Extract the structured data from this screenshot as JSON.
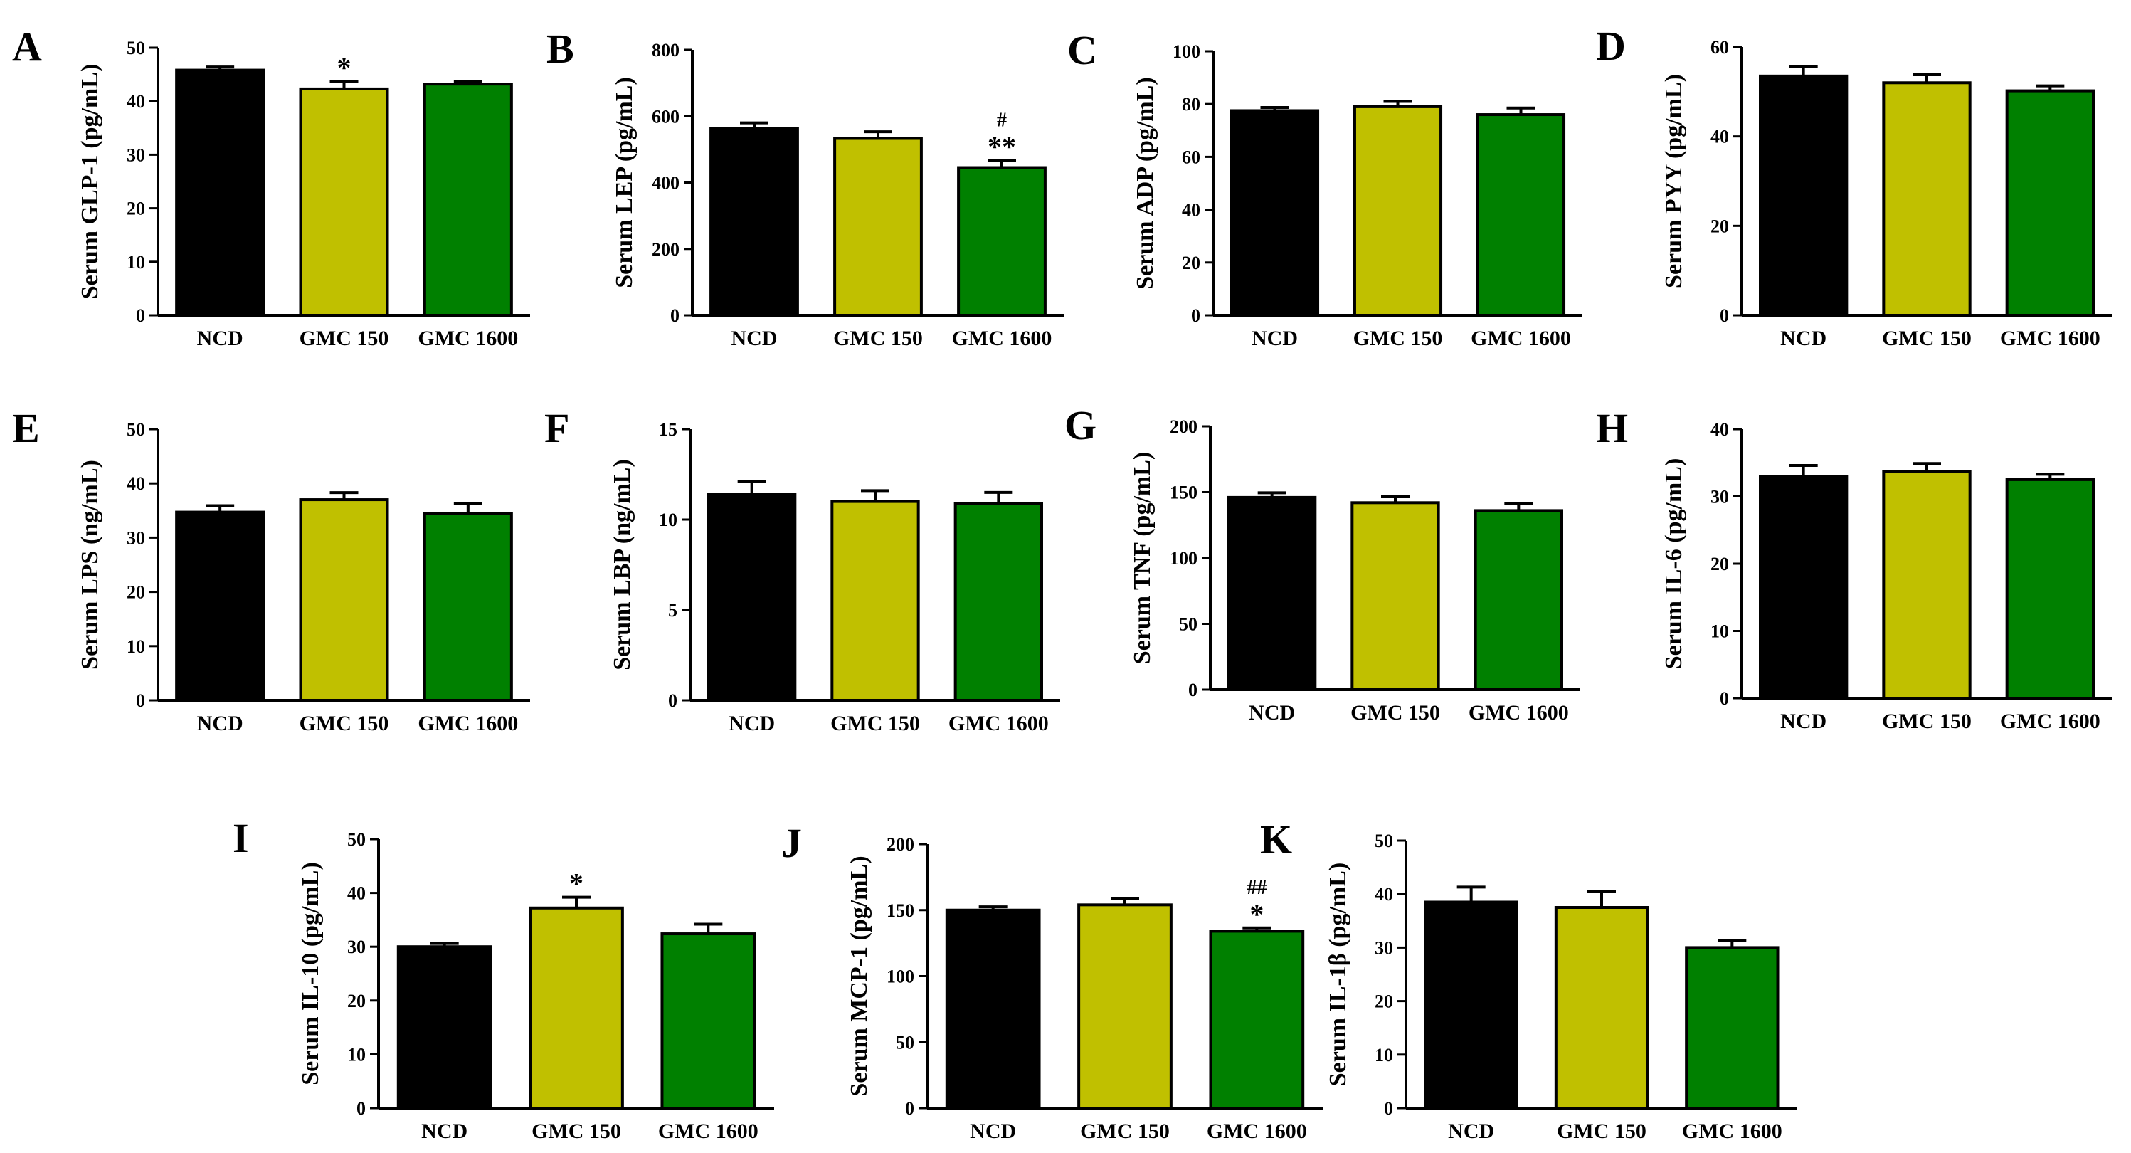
{
  "colors": {
    "NCD": "#000000",
    "GMC 150": "#c0c000",
    "GMC 1600": "#008000",
    "axis": "#000000"
  },
  "chart_data": [
    {
      "panel": "A",
      "type": "bar",
      "ylabel": "Serum GLP-1 (pg/mL)",
      "ylim": [
        0,
        50
      ],
      "yticks": [
        0,
        10,
        20,
        30,
        40,
        50
      ],
      "categories": [
        "NCD",
        "GMC 150",
        "GMC 1600"
      ],
      "values": [
        45.8,
        42.3,
        43.2
      ],
      "errors": [
        0.6,
        1.4,
        0.5
      ],
      "annotations": [
        "",
        "*",
        ""
      ]
    },
    {
      "panel": "B",
      "type": "bar",
      "ylabel": "Serum LEP (pg/mL)",
      "ylim": [
        0,
        800
      ],
      "yticks": [
        0,
        200,
        400,
        600,
        800
      ],
      "categories": [
        "NCD",
        "GMC 150",
        "GMC 1600"
      ],
      "values": [
        562,
        533,
        445
      ],
      "errors": [
        18,
        20,
        22
      ],
      "annotations": [
        "",
        "",
        "#\n**"
      ]
    },
    {
      "panel": "C",
      "type": "bar",
      "ylabel": "Serum ADP (pg/mL)",
      "ylim": [
        0,
        100
      ],
      "yticks": [
        0,
        20,
        40,
        60,
        80,
        100
      ],
      "categories": [
        "NCD",
        "GMC 150",
        "GMC 1600"
      ],
      "values": [
        77.5,
        79,
        76
      ],
      "errors": [
        1.2,
        2,
        2.5
      ],
      "annotations": [
        "",
        "",
        ""
      ]
    },
    {
      "panel": "D",
      "type": "bar",
      "ylabel": "Serum PYY (pg/mL)",
      "ylim": [
        0,
        60
      ],
      "yticks": [
        0,
        20,
        40,
        60
      ],
      "categories": [
        "NCD",
        "GMC 150",
        "GMC 1600"
      ],
      "values": [
        53.5,
        52,
        50.2
      ],
      "errors": [
        2.2,
        1.8,
        1.1
      ],
      "annotations": [
        "",
        "",
        ""
      ]
    },
    {
      "panel": "E",
      "type": "bar",
      "ylabel": "Serum LPS (ng/mL)",
      "ylim": [
        0,
        50
      ],
      "yticks": [
        0,
        10,
        20,
        30,
        40,
        50
      ],
      "categories": [
        "NCD",
        "GMC 150",
        "GMC 1600"
      ],
      "values": [
        34.7,
        37,
        34.4
      ],
      "errors": [
        1.2,
        1.3,
        1.9
      ],
      "annotations": [
        "",
        "",
        ""
      ]
    },
    {
      "panel": "F",
      "type": "bar",
      "ylabel": "Serum LBP (ng/mL)",
      "ylim": [
        0,
        15
      ],
      "yticks": [
        0,
        5,
        10,
        15
      ],
      "categories": [
        "NCD",
        "GMC 150",
        "GMC 1600"
      ],
      "values": [
        11.4,
        11,
        10.9
      ],
      "errors": [
        0.7,
        0.6,
        0.6
      ],
      "annotations": [
        "",
        "",
        ""
      ]
    },
    {
      "panel": "G",
      "type": "bar",
      "ylabel": "Serum TNF (pg/mL)",
      "ylim": [
        0,
        200
      ],
      "yticks": [
        0,
        50,
        100,
        150,
        200
      ],
      "categories": [
        "NCD",
        "GMC 150",
        "GMC 1600"
      ],
      "values": [
        146,
        142,
        136
      ],
      "errors": [
        3.5,
        4.5,
        5.5
      ],
      "annotations": [
        "",
        "",
        ""
      ]
    },
    {
      "panel": "H",
      "type": "bar",
      "ylabel": "Serum IL-6 (pg/mL)",
      "ylim": [
        0,
        40
      ],
      "yticks": [
        0,
        10,
        20,
        30,
        40
      ],
      "categories": [
        "NCD",
        "GMC 150",
        "GMC 1600"
      ],
      "values": [
        33,
        33.7,
        32.5
      ],
      "errors": [
        1.6,
        1.2,
        0.8
      ],
      "annotations": [
        "",
        "",
        ""
      ]
    },
    {
      "panel": "I",
      "type": "bar",
      "ylabel": "Serum IL-10 (pg/mL)",
      "ylim": [
        0,
        50
      ],
      "yticks": [
        0,
        10,
        20,
        30,
        40,
        50
      ],
      "categories": [
        "NCD",
        "GMC 150",
        "GMC 1600"
      ],
      "values": [
        30,
        37.2,
        32.4
      ],
      "errors": [
        0.6,
        2,
        1.8
      ],
      "annotations": [
        "",
        "*",
        ""
      ]
    },
    {
      "panel": "J",
      "type": "bar",
      "ylabel": "Serum MCP-1 (pg/mL)",
      "ylim": [
        0,
        200
      ],
      "yticks": [
        0,
        50,
        100,
        150,
        200
      ],
      "categories": [
        "NCD",
        "GMC 150",
        "GMC 1600"
      ],
      "values": [
        150,
        154,
        134
      ],
      "errors": [
        2.5,
        4.5,
        2.5
      ],
      "annotations": [
        "",
        "",
        "##\n*"
      ]
    },
    {
      "panel": "K",
      "type": "bar",
      "ylabel": "Serum IL-1β (pg/mL)",
      "ylim": [
        0,
        50
      ],
      "yticks": [
        0,
        10,
        20,
        30,
        40,
        50
      ],
      "categories": [
        "NCD",
        "GMC 150",
        "GMC 1600"
      ],
      "values": [
        38.5,
        37.5,
        30
      ],
      "errors": [
        2.8,
        3,
        1.3
      ],
      "annotations": [
        "",
        "",
        ""
      ]
    }
  ]
}
